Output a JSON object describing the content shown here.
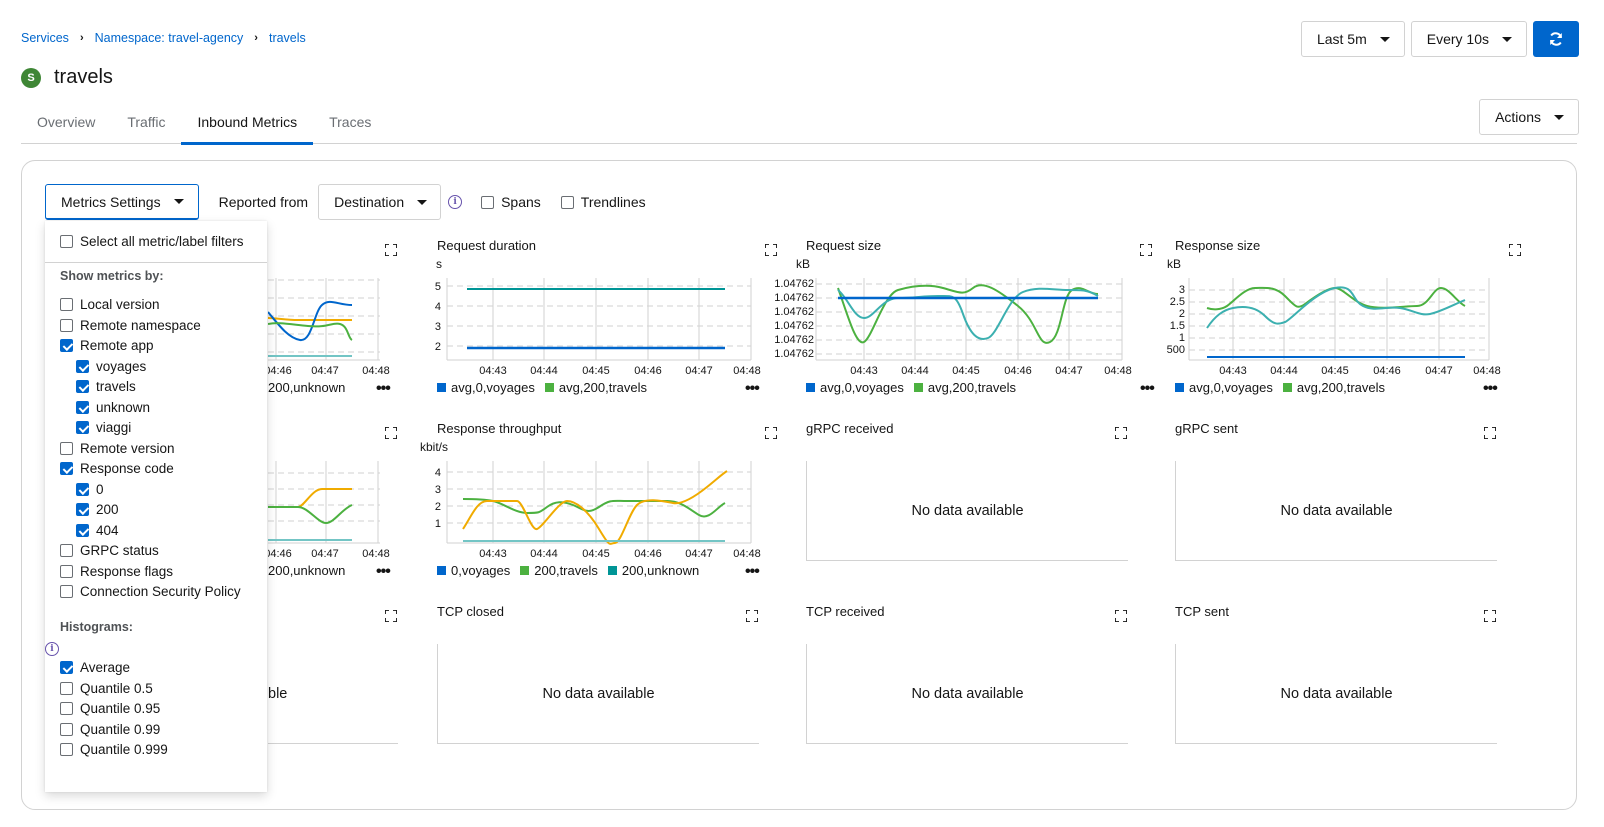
{
  "breadcrumb": {
    "services": "Services",
    "namespace": "Namespace: travel-agency",
    "current": "travels"
  },
  "title": {
    "badge": "S",
    "name": "travels"
  },
  "controls": {
    "time_range": "Last 5m",
    "refresh_interval": "Every 10s"
  },
  "tabs": [
    {
      "label": "Overview",
      "active": false
    },
    {
      "label": "Traffic",
      "active": false
    },
    {
      "label": "Inbound Metrics",
      "active": true
    },
    {
      "label": "Traces",
      "active": false
    }
  ],
  "actions_label": "Actions",
  "toolbar": {
    "metrics_settings": "Metrics Settings",
    "reported_from": "Reported from",
    "reported_value": "Destination",
    "spans": "Spans",
    "trendlines": "Trendlines"
  },
  "dropdown": {
    "select_all": "Select all metric/label filters",
    "show_metrics_by": "Show metrics by:",
    "items": [
      {
        "label": "Local version",
        "checked": false,
        "indent": 0
      },
      {
        "label": "Remote namespace",
        "checked": false,
        "indent": 0
      },
      {
        "label": "Remote app",
        "checked": true,
        "indent": 0
      },
      {
        "label": "voyages",
        "checked": true,
        "indent": 1
      },
      {
        "label": "travels",
        "checked": true,
        "indent": 1
      },
      {
        "label": "unknown",
        "checked": true,
        "indent": 1
      },
      {
        "label": "viaggi",
        "checked": true,
        "indent": 1
      },
      {
        "label": "Remote version",
        "checked": false,
        "indent": 0
      },
      {
        "label": "Response code",
        "checked": true,
        "indent": 0
      },
      {
        "label": "0",
        "checked": true,
        "indent": 1
      },
      {
        "label": "200",
        "checked": true,
        "indent": 1
      },
      {
        "label": "404",
        "checked": true,
        "indent": 1
      },
      {
        "label": "GRPC status",
        "checked": false,
        "indent": 0
      },
      {
        "label": "Response flags",
        "checked": false,
        "indent": 0
      },
      {
        "label": "Connection Security Policy",
        "checked": false,
        "indent": 0
      }
    ],
    "histograms_label": "Histograms:",
    "histograms": [
      {
        "label": "Average",
        "checked": true
      },
      {
        "label": "Quantile 0.5",
        "checked": false
      },
      {
        "label": "Quantile 0.95",
        "checked": false
      },
      {
        "label": "Quantile 0.99",
        "checked": false
      },
      {
        "label": "Quantile 0.999",
        "checked": false
      }
    ]
  },
  "colors": {
    "blue": "#0066cc",
    "green": "#4cb140",
    "gold": "#f0ab00",
    "cyan": "#009596",
    "grid": "#d2d2d2"
  },
  "x_ticks": [
    "04:43",
    "04:44",
    "04:45",
    "04:46",
    "04:47",
    "04:48"
  ],
  "no_data_text": "No data available",
  "charts": {
    "c1": {
      "partial_legend": "200,unknown",
      "x_ticks": [
        "04:46",
        "04:47",
        "04:48"
      ]
    },
    "c2": {
      "title": "Request duration",
      "unit": "s",
      "y_ticks": [
        "5",
        "4",
        "3",
        "2"
      ],
      "legend": [
        "avg,0,voyages",
        "avg,200,travels"
      ]
    },
    "c3": {
      "title": "Request size",
      "unit": "kB",
      "y_ticks": [
        "1.04762",
        "1.04762",
        "1.04762",
        "1.04762",
        "1.04762",
        "1.04762"
      ],
      "legend": [
        "avg,0,voyages",
        "avg,200,travels"
      ]
    },
    "c4": {
      "title": "Response size",
      "unit": "kB",
      "y_ticks": [
        "3",
        "2.5",
        "2",
        "1.5",
        "1",
        "500"
      ],
      "legend": [
        "avg,0,voyages",
        "avg,200,travels"
      ]
    },
    "c5": {
      "partial_legend": "200,unknown",
      "x_ticks": [
        "04:46",
        "04:47",
        "04:48"
      ]
    },
    "c6": {
      "title": "Response throughput",
      "unit": "kbit/s",
      "y_ticks": [
        "4",
        "3",
        "2",
        "1"
      ],
      "legend": [
        "0,voyages",
        "200,travels",
        "200,unknown"
      ]
    },
    "c7": {
      "title": "gRPC received"
    },
    "c8": {
      "title": "gRPC sent"
    },
    "c9": {
      "partial_nodata": "ble"
    },
    "c10": {
      "title": "TCP closed"
    },
    "c11": {
      "title": "TCP received"
    },
    "c12": {
      "title": "TCP sent"
    }
  },
  "chart_data": [
    {
      "type": "line",
      "title": "Request duration",
      "ylabel": "s",
      "x": [
        "04:42:50",
        "04:43",
        "04:44",
        "04:45",
        "04:46",
        "04:47",
        "04:47:30"
      ],
      "ylim": [
        1.5,
        5.5
      ],
      "series": [
        {
          "name": "avg,0,voyages",
          "values": [
            2,
            2,
            2,
            2,
            2,
            2,
            2
          ]
        },
        {
          "name": "avg,200,travels",
          "values": [
            5.05,
            5.05,
            5.05,
            5.05,
            5.05,
            5.05,
            5.05
          ]
        }
      ]
    },
    {
      "type": "line",
      "title": "Request size",
      "ylabel": "kB",
      "x": [
        "04:42:30",
        "04:42:50",
        "04:43",
        "04:43:30",
        "04:44",
        "04:44:30",
        "04:45",
        "04:45:30",
        "04:46",
        "04:46:30",
        "04:47",
        "04:47:30"
      ],
      "series": [
        {
          "name": "avg,0,voyages",
          "values": [
            1.047625,
            1.047625,
            1.047625,
            1.047625,
            1.047625,
            1.047625,
            1.047625,
            1.047625,
            1.047625,
            1.047625,
            1.047625,
            1.047625
          ]
        },
        {
          "name": "avg,200,travels",
          "values": [
            1.047628,
            1.047613,
            1.047617,
            1.047627,
            1.047628,
            1.047626,
            1.047627,
            1.047626,
            1.047618,
            1.047614,
            1.047628,
            1.047626
          ]
        },
        {
          "name": "",
          "values": [
            1.047626,
            1.04762,
            1.047623,
            1.047625,
            1.047626,
            1.047627,
            1.047616,
            1.047623,
            1.047627,
            1.047627,
            1.047627,
            1.047625
          ]
        }
      ]
    },
    {
      "type": "line",
      "title": "Response size",
      "ylabel": "kB",
      "x": [
        "04:42:30",
        "04:42:50",
        "04:43:30",
        "04:44",
        "04:44:30",
        "04:45",
        "04:45:30",
        "04:46",
        "04:46:30",
        "04:47",
        "04:47:30"
      ],
      "series": [
        {
          "name": "avg,0,voyages",
          "values": [
            0.35,
            0.35,
            0.35,
            0.35,
            0.35,
            0.35,
            0.35,
            0.35,
            0.35,
            0.35,
            0.35
          ]
        },
        {
          "name": "avg,200,travels",
          "values": [
            2.2,
            2.15,
            3,
            3,
            2.2,
            3,
            2.2,
            2.2,
            2.2,
            3,
            2.3
          ]
        },
        {
          "name": "",
          "values": [
            1.4,
            2.1,
            2.2,
            1.4,
            2.2,
            3,
            2.2,
            2.1,
            2.2,
            1.8,
            2.5
          ]
        }
      ]
    },
    {
      "type": "line",
      "title": "Response throughput",
      "ylabel": "kbit/s",
      "x": [
        "04:42:40",
        "04:43",
        "04:43:30",
        "04:44",
        "04:44:30",
        "04:45",
        "04:45:30",
        "04:46",
        "04:46:30",
        "04:47",
        "04:47:30"
      ],
      "series": [
        {
          "name": "0,voyages",
          "values": [
            0,
            0,
            0,
            0,
            0,
            0,
            0,
            0,
            0,
            0,
            0
          ]
        },
        {
          "name": "200,travels",
          "values": [
            2.4,
            2.3,
            1.7,
            1.7,
            2.3,
            1.6,
            2.3,
            2.4,
            2.3,
            1.7,
            2.2
          ]
        },
        {
          "name": "200,unknown",
          "values": [
            0.7,
            2.4,
            2.3,
            0.6,
            2.3,
            1.8,
            0,
            2.3,
            2.3,
            3,
            4
          ]
        }
      ]
    }
  ]
}
